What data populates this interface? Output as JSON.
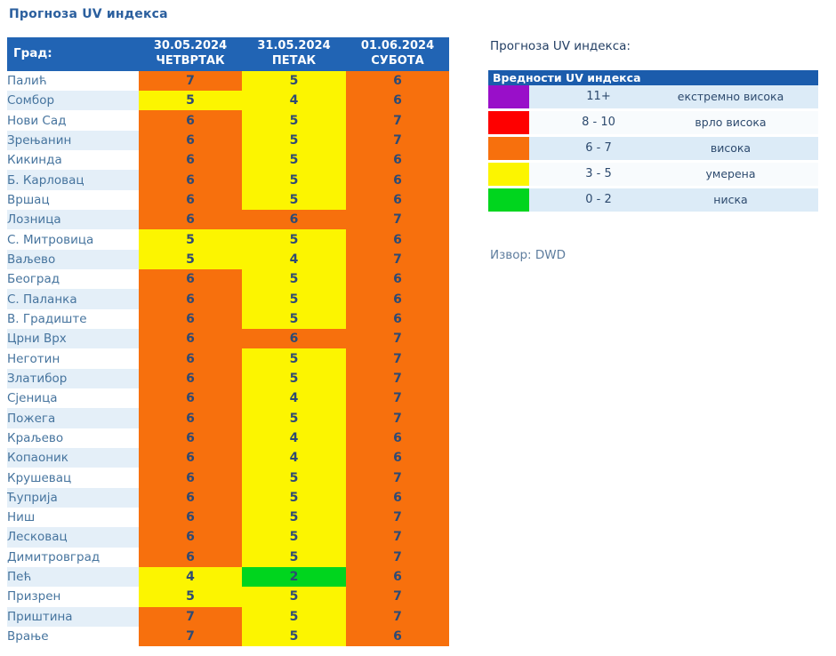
{
  "page_title": "Прогноза UV индекса",
  "table": {
    "header": {
      "city_label": "Град:",
      "days": [
        {
          "date": "30.05.2024",
          "day": "ЧЕТВРТАК"
        },
        {
          "date": "31.05.2024",
          "day": "ПЕТАК"
        },
        {
          "date": "01.06.2024",
          "day": "СУБОТА"
        }
      ]
    },
    "rows": [
      {
        "city": "Палић",
        "values": [
          7,
          5,
          6
        ]
      },
      {
        "city": "Сомбор",
        "values": [
          5,
          4,
          6
        ]
      },
      {
        "city": "Нови Сад",
        "values": [
          6,
          5,
          7
        ]
      },
      {
        "city": "Зрењанин",
        "values": [
          6,
          5,
          7
        ]
      },
      {
        "city": "Кикинда",
        "values": [
          6,
          5,
          6
        ]
      },
      {
        "city": "Б. Карловац",
        "values": [
          6,
          5,
          6
        ]
      },
      {
        "city": "Вршац",
        "values": [
          6,
          5,
          6
        ]
      },
      {
        "city": "Лозница",
        "values": [
          6,
          6,
          7
        ]
      },
      {
        "city": "С. Митровица",
        "values": [
          5,
          5,
          6
        ]
      },
      {
        "city": "Ваљево",
        "values": [
          5,
          4,
          7
        ]
      },
      {
        "city": "Београд",
        "values": [
          6,
          5,
          6
        ]
      },
      {
        "city": "С. Паланка",
        "values": [
          6,
          5,
          6
        ]
      },
      {
        "city": "В. Градиште",
        "values": [
          6,
          5,
          6
        ]
      },
      {
        "city": "Црни Врх",
        "values": [
          6,
          6,
          7
        ]
      },
      {
        "city": "Неготин",
        "values": [
          6,
          5,
          7
        ]
      },
      {
        "city": "Златибор",
        "values": [
          6,
          5,
          7
        ]
      },
      {
        "city": "Сјеница",
        "values": [
          6,
          4,
          7
        ]
      },
      {
        "city": "Пожега",
        "values": [
          6,
          5,
          7
        ]
      },
      {
        "city": "Краљево",
        "values": [
          6,
          4,
          6
        ]
      },
      {
        "city": "Копаоник",
        "values": [
          6,
          4,
          6
        ]
      },
      {
        "city": "Крушевац",
        "values": [
          6,
          5,
          7
        ]
      },
      {
        "city": "Ћуприја",
        "values": [
          6,
          5,
          6
        ]
      },
      {
        "city": "Ниш",
        "values": [
          6,
          5,
          7
        ]
      },
      {
        "city": "Лесковац",
        "values": [
          6,
          5,
          7
        ]
      },
      {
        "city": "Димитровград",
        "values": [
          6,
          5,
          7
        ]
      },
      {
        "city": "Пећ",
        "values": [
          4,
          2,
          6
        ]
      },
      {
        "city": "Призрен",
        "values": [
          5,
          5,
          7
        ]
      },
      {
        "city": "Приштина",
        "values": [
          7,
          5,
          7
        ]
      },
      {
        "city": "Врање",
        "values": [
          7,
          5,
          6
        ]
      }
    ]
  },
  "legend": {
    "title": "Прогноза UV индекса:",
    "table_header": "Вредности UV индекса",
    "items": [
      {
        "range": "11+",
        "label": "екстремно висока",
        "min": 11,
        "max": 99,
        "color": "#990fc9"
      },
      {
        "range": "8 - 10",
        "label": "врло висока",
        "min": 8,
        "max": 10,
        "color": "#fe0000"
      },
      {
        "range": "6 - 7",
        "label": "висока",
        "min": 6,
        "max": 7,
        "color": "#f7700d"
      },
      {
        "range": "3 - 5",
        "label": "умерена",
        "min": 3,
        "max": 5,
        "color": "#fcf500"
      },
      {
        "range": "0 - 2",
        "label": "ниска",
        "min": 0,
        "max": 2,
        "color": "#00d51e"
      }
    ],
    "source": "Извор: DWD"
  },
  "colors": {
    "table_header_bg": "#2164b4",
    "legend_header_bg": "#1b5cac",
    "alt_row_bg": "#e4eff8",
    "city_text": "#46749e",
    "value_text": "#2e4a74",
    "title_text": "#2b5f9e"
  }
}
